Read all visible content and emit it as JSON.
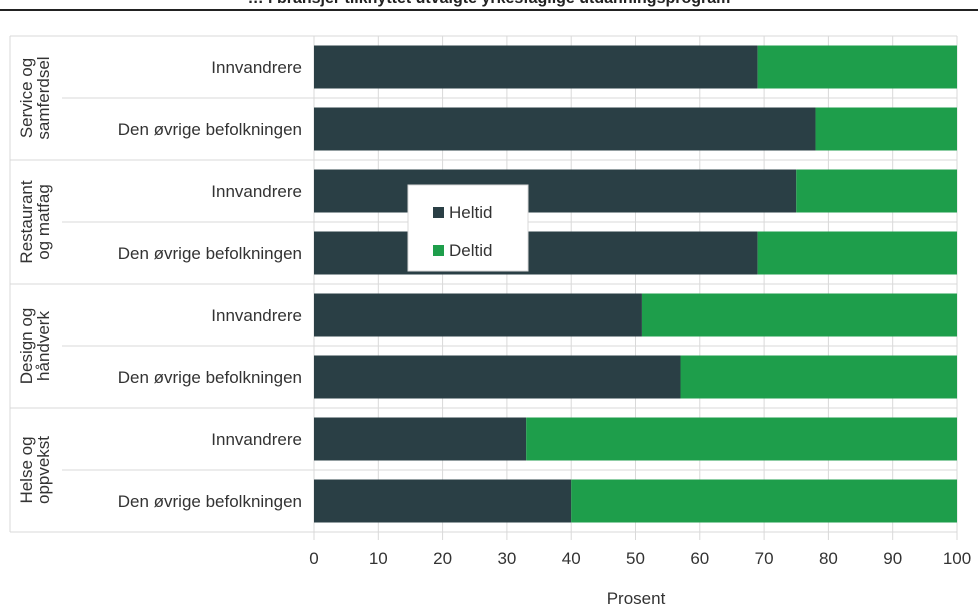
{
  "chart_data": {
    "type": "bar",
    "stacked": true,
    "orientation": "horizontal",
    "title": "… i bransjer tilknyttet utvalgte yrkesfaglige utdanningsprogram",
    "xlabel": "Prosent",
    "xlim": [
      0,
      100
    ],
    "xticks": [
      0,
      10,
      20,
      30,
      40,
      50,
      60,
      70,
      80,
      90,
      100
    ],
    "grid": true,
    "legend_position": "inside, center-left",
    "groups": [
      {
        "label": "Service og samferdsel",
        "label_lines": [
          "Service og",
          "samferdsel"
        ]
      },
      {
        "label": "Restaurant og matfag",
        "label_lines": [
          "Restaurant",
          "og matfag"
        ]
      },
      {
        "label": "Design og håndverk",
        "label_lines": [
          "Design og",
          "håndverk"
        ]
      },
      {
        "label": "Helse og oppvekst",
        "label_lines": [
          "Helse og",
          "oppvekst"
        ]
      }
    ],
    "categories": [
      "Innvandrere",
      "Den øvrige befolkningen",
      "Innvandrere",
      "Den øvrige befolkningen",
      "Innvandrere",
      "Den øvrige befolkningen",
      "Innvandrere",
      "Den øvrige befolkningen"
    ],
    "series": [
      {
        "name": "Heltid",
        "color": "#2a3f45",
        "values": [
          69,
          78,
          75,
          69,
          51,
          57,
          33,
          40
        ]
      },
      {
        "name": "Deltid",
        "color": "#1e9e4b",
        "values": [
          31,
          22,
          25,
          31,
          49,
          43,
          67,
          60
        ]
      }
    ]
  }
}
